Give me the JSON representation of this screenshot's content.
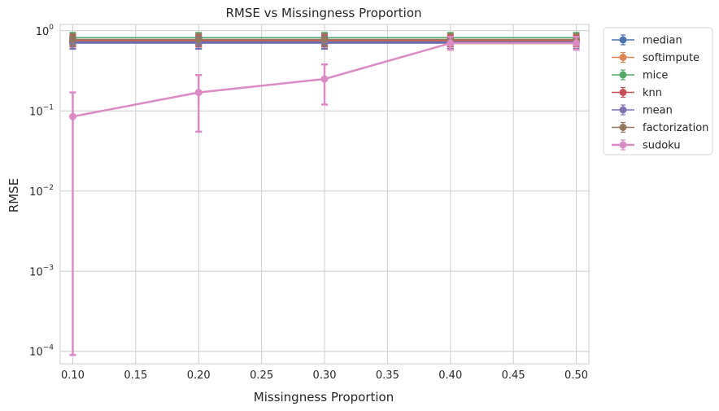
{
  "chart_data": {
    "type": "line",
    "title": "RMSE vs Missingness Proportion",
    "xlabel": "Missingness Proportion",
    "ylabel": "RMSE",
    "yscale": "log",
    "xlim": [
      0.09,
      0.51
    ],
    "ylim": [
      7e-05,
      1.2
    ],
    "grid": true,
    "legend_position": "outside-right",
    "x_ticks": [
      0.1,
      0.15,
      0.2,
      0.25,
      0.3,
      0.35,
      0.4,
      0.45,
      0.5
    ],
    "x_tick_labels": [
      "0.10",
      "0.15",
      "0.20",
      "0.25",
      "0.30",
      "0.35",
      "0.40",
      "0.45",
      "0.50"
    ],
    "y_ticks": [
      0.0001,
      0.001,
      0.01,
      0.1,
      1
    ],
    "y_tick_labels": [
      {
        "base": "10",
        "exp": "−4"
      },
      {
        "base": "10",
        "exp": "−3"
      },
      {
        "base": "10",
        "exp": "−2"
      },
      {
        "base": "10",
        "exp": "−1"
      },
      {
        "base": "10",
        "exp": "0"
      }
    ],
    "x": [
      0.1,
      0.2,
      0.3,
      0.4,
      0.5
    ],
    "series": [
      {
        "name": "median",
        "color": "#4c72b0",
        "values": [
          0.72,
          0.72,
          0.72,
          0.72,
          0.72
        ],
        "err_low": [
          0.6,
          0.6,
          0.6,
          0.6,
          0.6
        ],
        "err_high": [
          0.86,
          0.86,
          0.86,
          0.86,
          0.86
        ],
        "width": 1.5
      },
      {
        "name": "softimpute",
        "color": "#dd8452",
        "values": [
          0.76,
          0.76,
          0.76,
          0.76,
          0.76
        ],
        "err_low": [
          0.64,
          0.64,
          0.64,
          0.64,
          0.64
        ],
        "err_high": [
          0.9,
          0.9,
          0.9,
          0.9,
          0.9
        ],
        "width": 1.5
      },
      {
        "name": "mice",
        "color": "#55a868",
        "values": [
          0.82,
          0.82,
          0.82,
          0.82,
          0.82
        ],
        "err_low": [
          0.7,
          0.7,
          0.7,
          0.7,
          0.7
        ],
        "err_high": [
          0.95,
          0.95,
          0.95,
          0.95,
          0.95
        ],
        "width": 1.5
      },
      {
        "name": "knn",
        "color": "#c44e52",
        "values": [
          0.75,
          0.75,
          0.75,
          0.75,
          0.75
        ],
        "err_low": [
          0.63,
          0.63,
          0.63,
          0.63,
          0.63
        ],
        "err_high": [
          0.88,
          0.88,
          0.88,
          0.88,
          0.88
        ],
        "width": 1.5
      },
      {
        "name": "mean",
        "color": "#8172b3",
        "values": [
          0.7,
          0.7,
          0.7,
          0.7,
          0.7
        ],
        "err_low": [
          0.59,
          0.59,
          0.59,
          0.59,
          0.59
        ],
        "err_high": [
          0.84,
          0.84,
          0.84,
          0.84,
          0.84
        ],
        "width": 1.5
      },
      {
        "name": "factorization",
        "color": "#937860",
        "values": [
          0.78,
          0.78,
          0.78,
          0.78,
          0.78
        ],
        "err_low": [
          0.66,
          0.66,
          0.66,
          0.66,
          0.66
        ],
        "err_high": [
          0.92,
          0.92,
          0.92,
          0.92,
          0.92
        ],
        "width": 1.5
      },
      {
        "name": "sudoku",
        "color": "#da8bc3",
        "values": [
          0.085,
          0.17,
          0.25,
          0.7,
          0.7
        ],
        "err_low": [
          9e-05,
          0.055,
          0.12,
          0.58,
          0.58
        ],
        "err_high": [
          0.17,
          0.28,
          0.38,
          0.84,
          0.84
        ],
        "width": 2.5
      }
    ]
  }
}
